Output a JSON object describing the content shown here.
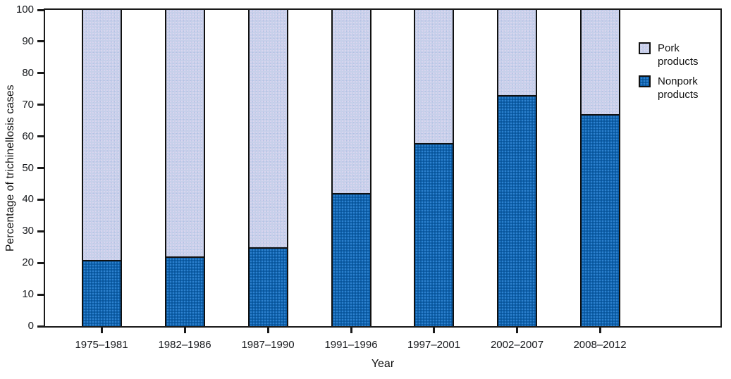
{
  "chart_data": {
    "type": "bar",
    "stacked": true,
    "categories": [
      "1975–1981",
      "1982–1986",
      "1987–1990",
      "1991–1996",
      "1997–2001",
      "2002–2007",
      "2008–2012"
    ],
    "series": [
      {
        "name": "Nonpork products",
        "key": "nonpork",
        "color": "#0e63ae",
        "values": [
          21,
          22,
          25,
          42,
          58,
          73,
          67
        ]
      },
      {
        "name": "Pork products",
        "key": "pork",
        "color": "#c7d0ea",
        "values": [
          79,
          78,
          75,
          58,
          42,
          27,
          33
        ]
      }
    ],
    "title": "",
    "xlabel": "Year",
    "ylabel": "Percentage of trichinellosis cases",
    "ylim": [
      0,
      100
    ],
    "yticks": [
      0,
      10,
      20,
      30,
      40,
      50,
      60,
      70,
      80,
      90,
      100
    ],
    "grid": false,
    "legend_position": "upper right inside plot"
  },
  "legend": {
    "items": [
      {
        "label": "Pork products",
        "key": "pork"
      },
      {
        "label": "Nonpork products",
        "key": "nonpork"
      }
    ]
  },
  "colors": {
    "nonpork": "#0e63ae",
    "pork": "#c7d0ea",
    "axis": "#1a1a1a"
  }
}
